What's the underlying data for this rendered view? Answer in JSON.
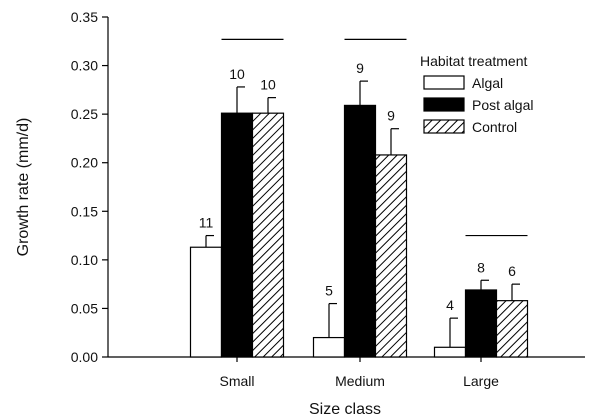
{
  "chart_data": {
    "type": "bar",
    "categories": [
      "Small",
      "Medium",
      "Large"
    ],
    "series": [
      {
        "name": "Algal",
        "values": [
          0.113,
          0.02,
          0.01
        ],
        "errors": [
          0.012,
          0.035,
          0.03
        ],
        "n": [
          "11",
          "5",
          "4"
        ],
        "fill": "#ffffff",
        "pattern": "none"
      },
      {
        "name": "Post algal",
        "values": [
          0.251,
          0.259,
          0.069
        ],
        "errors": [
          0.027,
          0.025,
          0.01
        ],
        "n": [
          "10",
          "9",
          "8"
        ],
        "fill": "#000000",
        "pattern": "none"
      },
      {
        "name": "Control",
        "values": [
          0.251,
          0.208,
          0.058
        ],
        "errors": [
          0.016,
          0.027,
          0.017
        ],
        "n": [
          "10",
          "9",
          "6"
        ],
        "fill": "#ffffff",
        "pattern": "hatch"
      }
    ],
    "significance_lines": [
      {
        "category": "Small",
        "y": 0.327,
        "from_series": 1,
        "to_series": 2
      },
      {
        "category": "Medium",
        "y": 0.327,
        "from_series": 1,
        "to_series": 2
      },
      {
        "category": "Large",
        "y": 0.125,
        "from_series": 1,
        "to_series": 2
      }
    ],
    "ylabel": "Growth rate (mm/d)",
    "xlabel": "Size class",
    "ylim": [
      0,
      0.35
    ],
    "yticks": [
      "0.00",
      "0.05",
      "0.10",
      "0.15",
      "0.20",
      "0.25",
      "0.30",
      "0.35"
    ],
    "legend": {
      "title": "Habitat treatment",
      "position": "top-right"
    },
    "grid": false
  }
}
